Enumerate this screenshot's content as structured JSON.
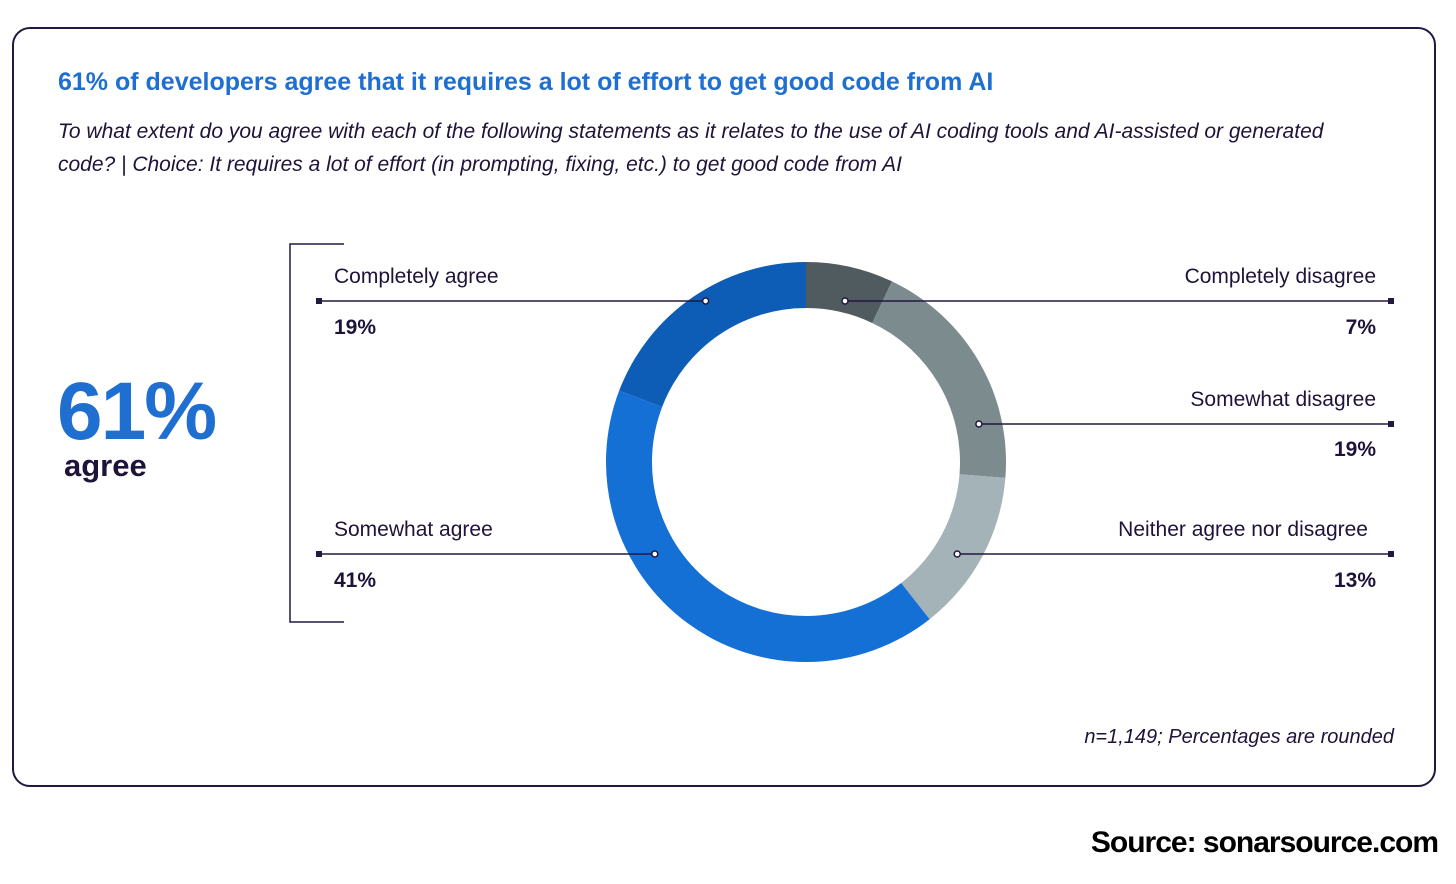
{
  "chart_data": {
    "type": "pie",
    "title": "61% of developers agree that it requires a lot of effort to get good code from AI",
    "subtitle": "To what extent do you agree with each of the following statements as it relates to the use of AI coding tools and AI-assisted or generated code? | Choice: It requires a lot of effort (in prompting, fixing, etc.) to get good code from AI",
    "donut": true,
    "slices": [
      {
        "label": "Completely disagree",
        "value": 7,
        "display": "7%",
        "color": "#4f5b5e"
      },
      {
        "label": "Somewhat disagree",
        "value": 19,
        "display": "19%",
        "color": "#7c8b8e"
      },
      {
        "label": "Neither agree nor disagree",
        "value": 13,
        "display": "13%",
        "color": "#a4b3b7"
      },
      {
        "label": "Somewhat agree",
        "value": 41,
        "display": "41%",
        "color": "#1570d6"
      },
      {
        "label": "Completely agree",
        "value": 19,
        "display": "19%",
        "color": "#0d5cb5"
      }
    ],
    "highlight": {
      "value": "61%",
      "label": "agree"
    },
    "note": "n=1,149; Percentages are rounded"
  },
  "source": "Source: sonarsource.com"
}
